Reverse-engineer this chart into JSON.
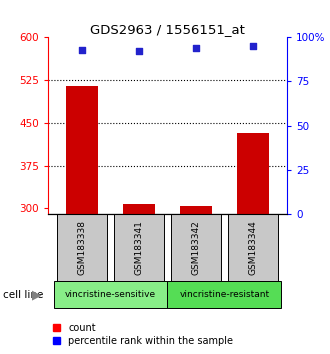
{
  "title": "GDS2963 / 1556151_at",
  "samples": [
    "GSM183338",
    "GSM183341",
    "GSM183342",
    "GSM183344"
  ],
  "counts": [
    515,
    308,
    305,
    432
  ],
  "percentile_ranks": [
    93,
    92,
    94,
    95
  ],
  "ylim_left": [
    290,
    600
  ],
  "yticks_left": [
    300,
    375,
    450,
    525,
    600
  ],
  "ylim_right": [
    0,
    100
  ],
  "yticks_right": [
    0,
    25,
    50,
    75,
    100
  ],
  "bar_color": "#cc0000",
  "dot_color": "#2222cc",
  "bar_base": 290,
  "groups": [
    {
      "label": "vincristine-sensitive",
      "color": "#88ee88"
    },
    {
      "label": "vincristine-resistant",
      "color": "#55dd55"
    }
  ],
  "sample_box_color": "#c8c8c8",
  "bar_width": 0.55,
  "x_positions": [
    0,
    1,
    2,
    3
  ],
  "group_ranges": [
    [
      -0.5,
      1.5
    ],
    [
      1.5,
      3.5
    ]
  ]
}
